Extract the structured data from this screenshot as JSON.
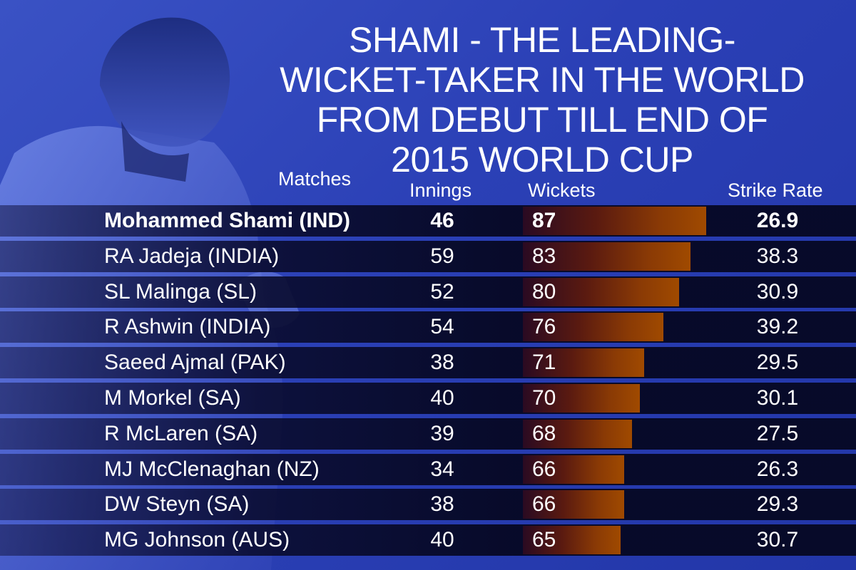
{
  "title": "SHAMI - THE LEADING-\nWICKET-TAKER IN THE WORLD\nFROM DEBUT TILL END OF\n2015 WORLD CUP",
  "title_lines": [
    "SHAMI - THE LEADING-",
    "WICKET-TAKER IN THE WORLD",
    "FROM DEBUT TILL END OF",
    "2015 WORLD CUP"
  ],
  "headers": {
    "matches": "Matches",
    "innings": "Innings",
    "wickets": "Wickets",
    "strike_rate": "Strike Rate"
  },
  "colors": {
    "background": "#2b40b6",
    "row_background": "#06082a",
    "bar_start": "#2a0a22",
    "bar_end": "#a04a00",
    "text": "#ffffff"
  },
  "chart_data": {
    "type": "table",
    "title": "SHAMI - THE LEADING-WICKET-TAKER IN THE WORLD FROM DEBUT TILL END OF 2015 WORLD CUP",
    "columns": [
      "Matches",
      "Innings",
      "Wickets",
      "Strike Rate"
    ],
    "bar_column": "Wickets",
    "bar_max": 87,
    "rows": [
      {
        "name": "Mohammed Shami (IND)",
        "innings": "46",
        "wickets": "87",
        "strike_rate": "26.9",
        "highlight": true
      },
      {
        "name": "RA Jadeja (INDIA)",
        "innings": "59",
        "wickets": "83",
        "strike_rate": "38.3"
      },
      {
        "name": "SL Malinga (SL)",
        "innings": "52",
        "wickets": "80",
        "strike_rate": "30.9"
      },
      {
        "name": "R Ashwin (INDIA)",
        "innings": "54",
        "wickets": "76",
        "strike_rate": "39.2"
      },
      {
        "name": "Saeed Ajmal (PAK)",
        "innings": "38",
        "wickets": "71",
        "strike_rate": "29.5"
      },
      {
        "name": "M Morkel (SA)",
        "innings": "40",
        "wickets": "70",
        "strike_rate": "30.1"
      },
      {
        "name": "R McLaren (SA)",
        "innings": "39",
        "wickets": "68",
        "strike_rate": "27.5"
      },
      {
        "name": "MJ McClenaghan (NZ)",
        "innings": "34",
        "wickets": "66",
        "strike_rate": "26.3"
      },
      {
        "name": "DW Steyn (SA)",
        "innings": "38",
        "wickets": "66",
        "strike_rate": "29.3"
      },
      {
        "name": "MG Johnson (AUS)",
        "innings": "40",
        "wickets": "65",
        "strike_rate": "30.7"
      }
    ]
  }
}
